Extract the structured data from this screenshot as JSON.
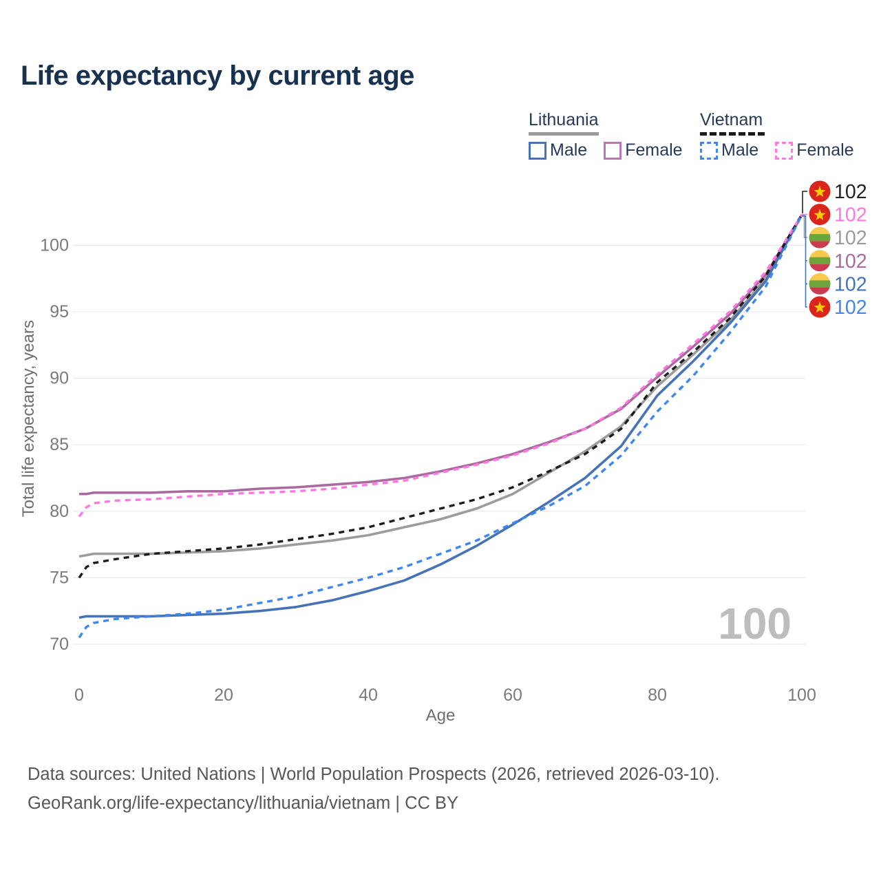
{
  "title": "Life expectancy by current age",
  "legend": {
    "groups": [
      {
        "label": "Lithuania",
        "line_style": "solid",
        "line_color": "#9a9a9a",
        "items": [
          {
            "label": "Male",
            "color": "#4673b8",
            "dashed": false
          },
          {
            "label": "Female",
            "color": "#b678b0",
            "dashed": false
          }
        ]
      },
      {
        "label": "Vietnam",
        "line_style": "dashed",
        "line_color": "#1a1a1a",
        "items": [
          {
            "label": "Male",
            "color": "#3e86f0",
            "dashed": true
          },
          {
            "label": "Female",
            "color": "#ff7ae0",
            "dashed": true
          }
        ]
      }
    ]
  },
  "watermark_age": "100",
  "chart_data": {
    "type": "line",
    "title": "Life expectancy by current age",
    "xlabel": "Age",
    "ylabel": "Total life expectancy, years",
    "xlim": [
      0,
      100
    ],
    "ylim": [
      69.5,
      103.2
    ],
    "x_ticks": [
      0,
      20,
      40,
      60,
      80,
      100
    ],
    "y_ticks": [
      70,
      75,
      80,
      85,
      90,
      95,
      100
    ],
    "grid": "horizontal-only",
    "legend_position": "top-right",
    "x": [
      0,
      1,
      2,
      5,
      10,
      15,
      20,
      25,
      30,
      35,
      40,
      45,
      50,
      55,
      60,
      65,
      70,
      75,
      80,
      85,
      90,
      95,
      100
    ],
    "series": [
      {
        "name": "Lithuania — Total",
        "country": "Lithuania",
        "sex": "Both",
        "color": "#9c9c9c",
        "dashed": false,
        "end_value": 102,
        "values": [
          76.6,
          76.7,
          76.8,
          76.8,
          76.8,
          76.9,
          77.0,
          77.2,
          77.5,
          77.8,
          78.2,
          78.8,
          79.4,
          80.2,
          81.3,
          82.9,
          84.5,
          86.4,
          89.4,
          91.8,
          94.3,
          97.5,
          102.3
        ]
      },
      {
        "name": "Lithuania — Female",
        "country": "Lithuania",
        "sex": "Female",
        "color": "#aa6a9f",
        "dashed": false,
        "end_value": 102,
        "values": [
          81.3,
          81.3,
          81.4,
          81.4,
          81.4,
          81.5,
          81.5,
          81.7,
          81.8,
          82.0,
          82.2,
          82.5,
          83.0,
          83.6,
          84.3,
          85.2,
          86.2,
          87.7,
          90.1,
          92.4,
          94.8,
          97.8,
          102.3
        ]
      },
      {
        "name": "Lithuania — Male",
        "country": "Lithuania",
        "sex": "Male",
        "color": "#4673b8",
        "dashed": false,
        "end_value": 102,
        "values": [
          72.0,
          72.1,
          72.1,
          72.1,
          72.1,
          72.2,
          72.3,
          72.5,
          72.8,
          73.3,
          74.0,
          74.8,
          76.0,
          77.4,
          79.0,
          80.7,
          82.5,
          84.9,
          88.7,
          91.3,
          94.1,
          97.3,
          102.3
        ]
      },
      {
        "name": "Vietnam — Total",
        "country": "Vietnam",
        "sex": "Both",
        "color": "#1c1c1c",
        "dashed": true,
        "end_value": 102,
        "values": [
          75.0,
          75.8,
          76.1,
          76.4,
          76.8,
          77.0,
          77.2,
          77.5,
          77.9,
          78.3,
          78.8,
          79.5,
          80.2,
          80.9,
          81.8,
          83.0,
          84.3,
          86.2,
          89.7,
          92.0,
          94.5,
          97.7,
          102.3
        ]
      },
      {
        "name": "Vietnam — Female",
        "country": "Vietnam",
        "sex": "Female",
        "color": "#ff78e1",
        "dashed": true,
        "end_value": 102,
        "values": [
          79.6,
          80.3,
          80.6,
          80.8,
          80.9,
          81.1,
          81.3,
          81.4,
          81.5,
          81.7,
          82.0,
          82.3,
          82.9,
          83.5,
          84.2,
          85.1,
          86.2,
          87.8,
          90.3,
          92.6,
          95.0,
          98.0,
          102.3
        ]
      },
      {
        "name": "Vietnam — Male",
        "country": "Vietnam",
        "sex": "Male",
        "color": "#3e86f0",
        "dashed": true,
        "end_value": 102,
        "values": [
          70.5,
          71.3,
          71.6,
          71.9,
          72.1,
          72.3,
          72.6,
          73.1,
          73.6,
          74.3,
          75.0,
          75.8,
          76.8,
          77.8,
          79.1,
          80.4,
          81.9,
          84.2,
          87.5,
          90.2,
          93.4,
          96.9,
          102.3
        ]
      }
    ],
    "end_labels": [
      {
        "flag": "vietnam",
        "value": "102",
        "color": "#222222"
      },
      {
        "flag": "vietnam",
        "value": "102",
        "color": "#ff78e1"
      },
      {
        "flag": "lithuania",
        "value": "102",
        "color": "#9c9c9c"
      },
      {
        "flag": "lithuania",
        "value": "102",
        "color": "#aa6a9f"
      },
      {
        "flag": "lithuania",
        "value": "102",
        "color": "#4673b8"
      },
      {
        "flag": "vietnam",
        "value": "102",
        "color": "#3e86f0"
      }
    ],
    "flag_colors": {
      "vietnam_red": "#da251d",
      "vietnam_star_yellow": "#ffcd00",
      "lithuania_yellow": "#f7c94b",
      "lithuania_green": "#6fa33c",
      "lithuania_red": "#cd3a50"
    },
    "axis_color": "#7a7a7a",
    "grid_color": "#e9e9e9"
  },
  "footer": {
    "line1": "Data sources: United Nations | World Population Prospects (2026, retrieved 2026-03-10).",
    "line2": "GeoRank.org/life-expectancy/lithuania/vietnam | CC BY"
  }
}
